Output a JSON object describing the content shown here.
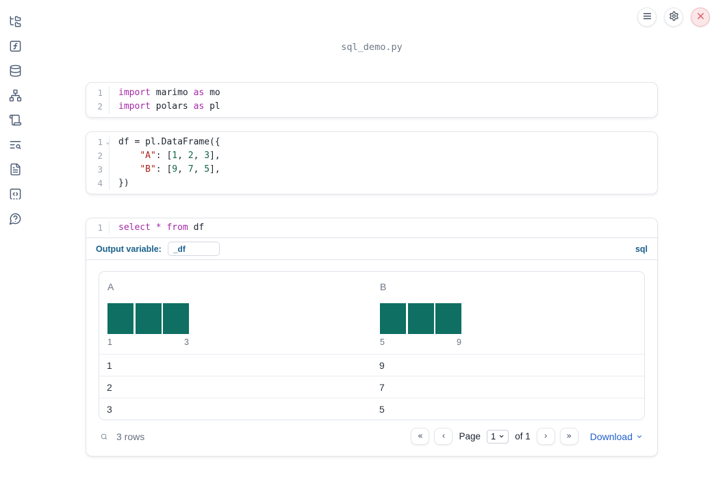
{
  "window": {
    "title": "sql_demo.py"
  },
  "colors": {
    "histogram_bar": "#0e6f62",
    "sql_accent": "#19608c",
    "link_blue": "#2060c9",
    "keyword": "#a32aa6",
    "string": "#a82217",
    "number": "#116644"
  },
  "sidebar": {
    "items": [
      {
        "icon": "folder-tree-icon"
      },
      {
        "icon": "square-function-icon"
      },
      {
        "icon": "database-icon"
      },
      {
        "icon": "network-graph-icon"
      },
      {
        "icon": "scroll-icon"
      },
      {
        "icon": "text-search-icon"
      },
      {
        "icon": "file-text-icon"
      },
      {
        "icon": "code-snippet-icon"
      },
      {
        "icon": "help-circle-icon"
      }
    ]
  },
  "topbar": {
    "buttons": [
      {
        "icon": "menu-icon"
      },
      {
        "icon": "gear-icon"
      },
      {
        "icon": "close-icon"
      }
    ]
  },
  "cells": {
    "imports": {
      "lines": [
        {
          "num": "1",
          "tokens": [
            [
              "kw",
              "import"
            ],
            [
              "pl",
              " marimo "
            ],
            [
              "kw",
              "as"
            ],
            [
              "pl",
              " mo"
            ]
          ]
        },
        {
          "num": "2",
          "tokens": [
            [
              "kw",
              "import"
            ],
            [
              "pl",
              " polars "
            ],
            [
              "kw",
              "as"
            ],
            [
              "pl",
              " pl"
            ]
          ]
        }
      ]
    },
    "dataframe": {
      "lines": [
        {
          "num": "1",
          "fold": true,
          "tokens": [
            [
              "pl",
              "df = pl.DataFrame({"
            ]
          ]
        },
        {
          "num": "2",
          "tokens": [
            [
              "pl",
              "    "
            ],
            [
              "str",
              "\"A\""
            ],
            [
              "pl",
              ": ["
            ],
            [
              "num",
              "1"
            ],
            [
              "pl",
              ", "
            ],
            [
              "num",
              "2"
            ],
            [
              "pl",
              ", "
            ],
            [
              "num",
              "3"
            ],
            [
              "pl",
              "],"
            ]
          ]
        },
        {
          "num": "3",
          "tokens": [
            [
              "pl",
              "    "
            ],
            [
              "str",
              "\"B\""
            ],
            [
              "pl",
              ": ["
            ],
            [
              "num",
              "9"
            ],
            [
              "pl",
              ", "
            ],
            [
              "num",
              "7"
            ],
            [
              "pl",
              ", "
            ],
            [
              "num",
              "5"
            ],
            [
              "pl",
              "],"
            ]
          ]
        },
        {
          "num": "4",
          "tokens": [
            [
              "pl",
              "})"
            ]
          ]
        }
      ]
    },
    "sql": {
      "lines": [
        {
          "num": "1",
          "tokens": [
            [
              "kw",
              "select"
            ],
            [
              "pl",
              " "
            ],
            [
              "kw",
              "*"
            ],
            [
              "pl",
              " "
            ],
            [
              "kw",
              "from"
            ],
            [
              "pl",
              " df"
            ]
          ]
        }
      ],
      "output_variable_label": "Output variable:",
      "output_variable_value": "_df",
      "language_label": "sql"
    }
  },
  "table": {
    "columns": [
      {
        "name": "A",
        "min_label": "1",
        "max_label": "3",
        "histogram_bars": [
          1,
          1,
          1
        ]
      },
      {
        "name": "B",
        "min_label": "5",
        "max_label": "9",
        "histogram_bars": [
          1,
          1,
          1
        ]
      }
    ],
    "rows": [
      [
        "1",
        "9"
      ],
      [
        "2",
        "7"
      ],
      [
        "3",
        "5"
      ]
    ],
    "row_count_label": "3 rows",
    "pagination": {
      "page_label": "Page",
      "page_value": "1",
      "of_label": "of 1"
    },
    "download_label": "Download"
  }
}
